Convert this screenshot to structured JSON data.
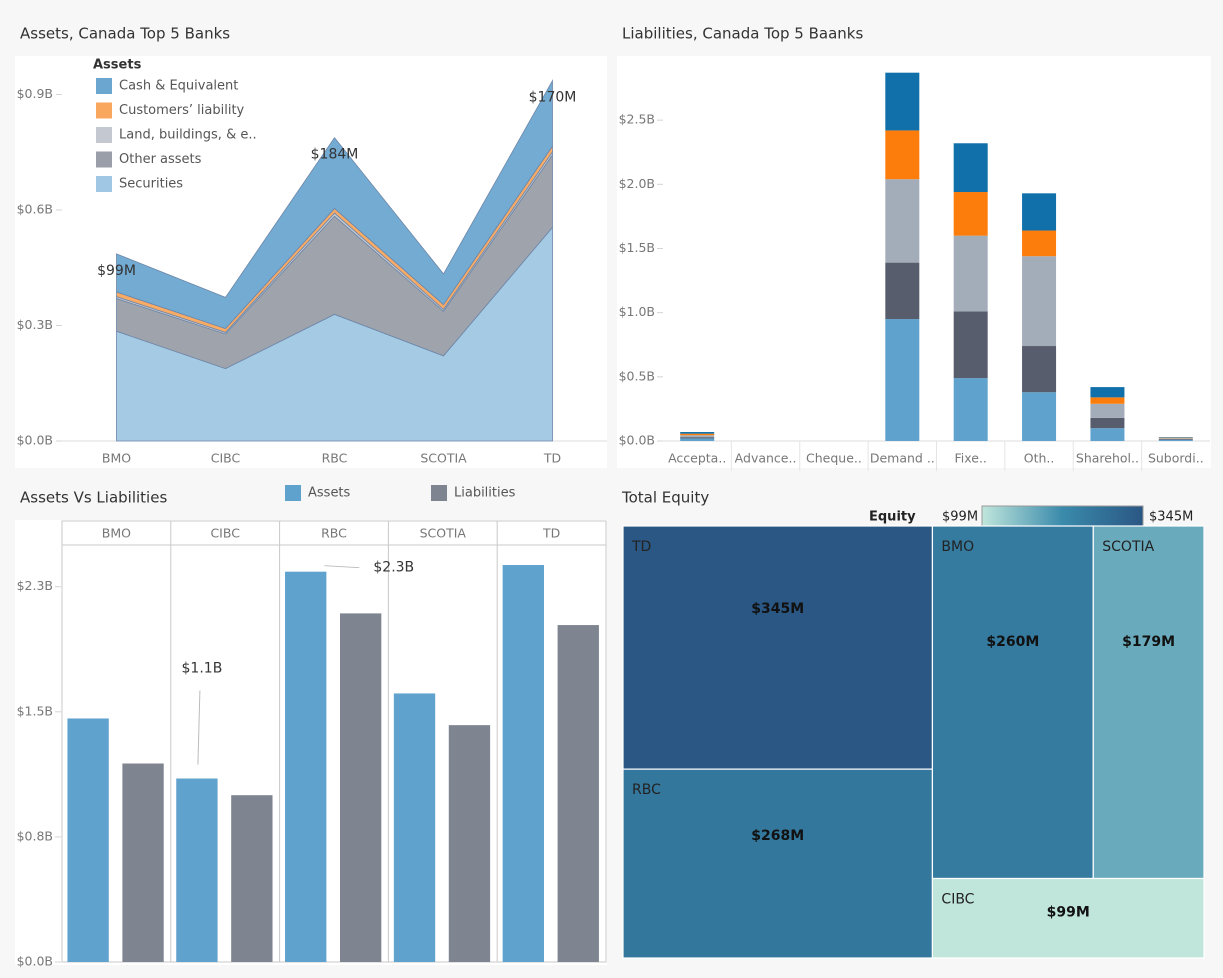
{
  "chart_data": [
    {
      "type": "area",
      "stacked": true,
      "title": "Assets, Canada Top 5 Banks",
      "legend_title": "Assets",
      "legend": "top-left",
      "categories": [
        "BMO",
        "CIBC",
        "RBC",
        "SCOTIA",
        "TD"
      ],
      "series": [
        {
          "name": "Cash & Equivalent",
          "color": "#6ba6d0",
          "values": [
            0.099,
            0.081,
            0.184,
            0.08,
            0.17
          ],
          "value_labels": [
            "$99M",
            null,
            "$184M",
            null,
            "$170M"
          ]
        },
        {
          "name": "Customers’ liability",
          "color": "#f9a75e",
          "values": [
            0.012,
            0.01,
            0.012,
            0.012,
            0.015
          ]
        },
        {
          "name": "Land, buildings, & e..",
          "color": "#c4c9d1",
          "values": [
            0.005,
            0.004,
            0.008,
            0.005,
            0.008
          ]
        },
        {
          "name": "Other assets",
          "color": "#999ea8",
          "values": [
            0.085,
            0.09,
            0.255,
            0.116,
            0.188
          ]
        },
        {
          "name": "Securities",
          "color": "#a0c7e3",
          "values": [
            0.285,
            0.188,
            0.329,
            0.221,
            0.555
          ]
        }
      ],
      "ylim": [
        0,
        1.0
      ],
      "yticks": [
        {
          "value": 0,
          "label": "$0.0B"
        },
        {
          "value": 0.3,
          "label": "$0.3B"
        },
        {
          "value": 0.6,
          "label": "$0.6B"
        },
        {
          "value": 0.9,
          "label": "$0.9B"
        }
      ]
    },
    {
      "type": "bar",
      "stacked": true,
      "title": "Liabilities, Canada Top 5 Baanks",
      "categories": [
        "Accepta..",
        "Advance..",
        "Cheque..",
        "Demand ..",
        "Fixe..",
        "Oth..",
        "Sharehol..",
        "Subordi.."
      ],
      "series": [
        {
          "color": "#5fa2ce",
          "values": [
            0.02,
            0,
            0,
            0.95,
            0.49,
            0.38,
            0.1,
            0.01
          ]
        },
        {
          "color": "#575d6d",
          "values": [
            0.01,
            0,
            0,
            0.44,
            0.52,
            0.36,
            0.08,
            0.006
          ]
        },
        {
          "color": "#a3acb9",
          "values": [
            0.015,
            0,
            0,
            0.65,
            0.59,
            0.7,
            0.11,
            0.006
          ]
        },
        {
          "color": "#fc7d0b",
          "values": [
            0.012,
            0,
            0,
            0.38,
            0.34,
            0.2,
            0.05,
            0.004
          ]
        },
        {
          "color": "#1170aa",
          "values": [
            0.013,
            0,
            0,
            0.45,
            0.38,
            0.29,
            0.08,
            0.004
          ]
        }
      ],
      "ylim": [
        0,
        3.0
      ],
      "yticks": [
        {
          "value": 0,
          "label": "$0.0B"
        },
        {
          "value": 0.5,
          "label": "$0.5B"
        },
        {
          "value": 1.0,
          "label": "$1.0B"
        },
        {
          "value": 1.5,
          "label": "$1.5B"
        },
        {
          "value": 2.0,
          "label": "$2.0B"
        },
        {
          "value": 2.5,
          "label": "$2.5B"
        }
      ]
    },
    {
      "type": "bar",
      "title": "Assets Vs Liabilities",
      "legend": "top",
      "categories": [
        "BMO",
        "CIBC",
        "RBC",
        "SCOTIA",
        "TD"
      ],
      "series": [
        {
          "name": "Assets",
          "color": "#5fa2ce",
          "values": [
            1.46,
            1.1,
            2.34,
            1.61,
            2.38
          ],
          "value_labels": [
            null,
            "$1.1B",
            "$2.3B",
            null,
            null
          ]
        },
        {
          "name": "Liabilities",
          "color": "#7f8590",
          "values": [
            1.19,
            1.0,
            2.09,
            1.42,
            2.02
          ]
        }
      ],
      "ylim": [
        0,
        2.5
      ],
      "yticks": [
        {
          "value": 0,
          "label": "$0.0B"
        },
        {
          "value": 0.75,
          "label": "$0.8B"
        },
        {
          "value": 1.5,
          "label": "$1.5B"
        },
        {
          "value": 2.25,
          "label": "$2.3B"
        }
      ]
    },
    {
      "type": "treemap",
      "title": "Total Equity",
      "categories": [
        "TD",
        "RBC",
        "BMO",
        "SCOTIA",
        "CIBC"
      ],
      "values": [
        345,
        268,
        260,
        179,
        99
      ],
      "value_labels": [
        "$345M",
        "$268M",
        "$260M",
        "$179M",
        "$99M"
      ],
      "color_legend_title": "Equity",
      "color_range": [
        {
          "value": 99,
          "label": "$99M"
        },
        {
          "value": 345,
          "label": "$345M"
        }
      ],
      "color_scale": [
        "#c0e6dc",
        "#3a8aab",
        "#2a5783"
      ]
    }
  ]
}
